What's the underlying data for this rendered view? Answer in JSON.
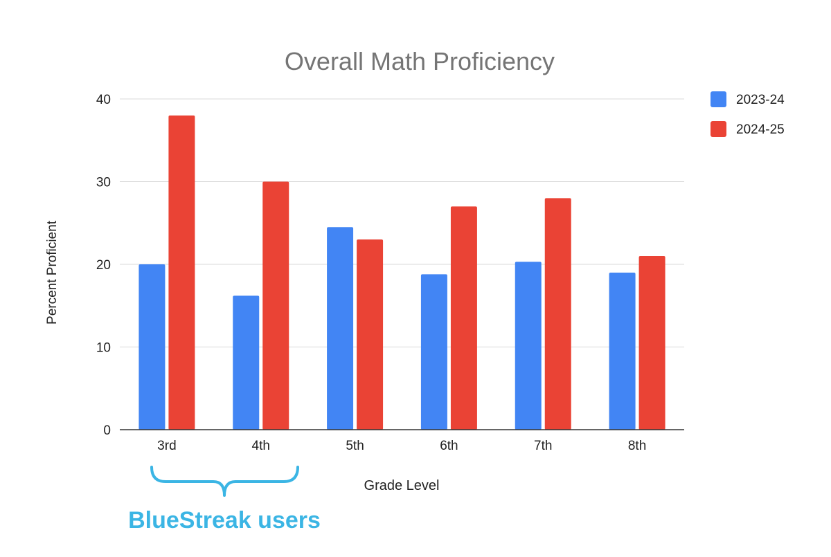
{
  "chart_data": {
    "type": "bar",
    "title": "Overall Math Proficiency",
    "xlabel": "Grade Level",
    "ylabel": "Percent Proficient",
    "categories": [
      "3rd",
      "4th",
      "5th",
      "6th",
      "7th",
      "8th"
    ],
    "series": [
      {
        "name": "2023-24",
        "color": "#4285F4",
        "values": [
          20,
          16.2,
          24.5,
          18.8,
          20.3,
          19
        ]
      },
      {
        "name": "2024-25",
        "color": "#EA4335",
        "values": [
          38,
          30,
          23,
          27,
          28,
          21
        ]
      }
    ],
    "ylim": [
      0,
      40
    ],
    "yticks": [
      0,
      10,
      20,
      30,
      40
    ],
    "grid": true,
    "legend_position": "top-right",
    "annotation": {
      "text": "BlueStreak users",
      "spans_categories": [
        "3rd",
        "4th"
      ],
      "color": "#3BB5E4"
    }
  }
}
